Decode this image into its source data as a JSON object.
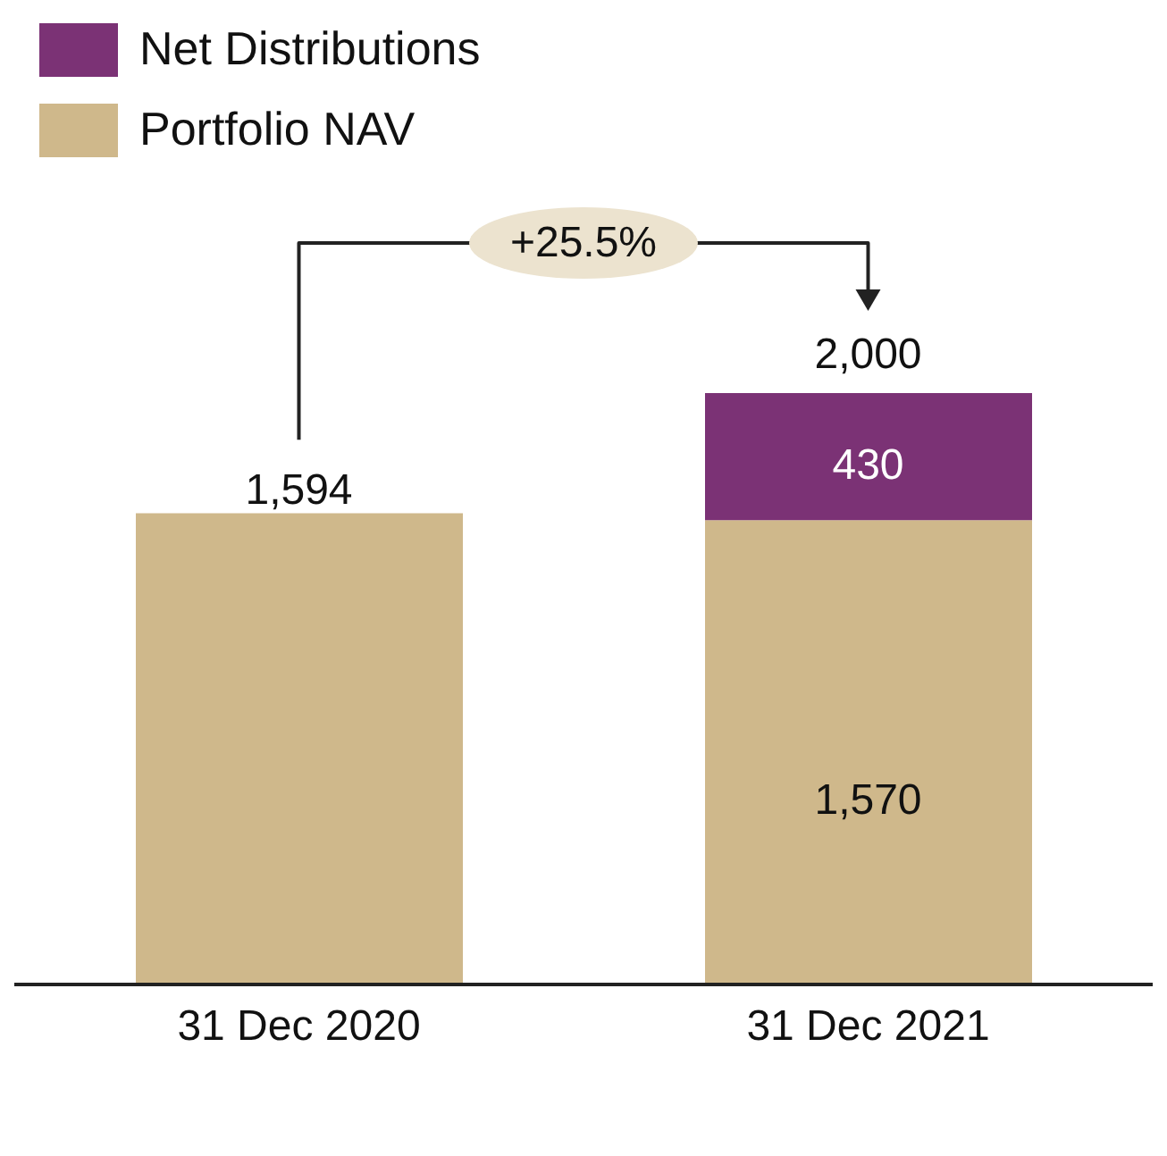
{
  "chart_data": {
    "type": "bar",
    "stacked": true,
    "categories": [
      "31 Dec 2020",
      "31 Dec 2021"
    ],
    "series": [
      {
        "name": "Portfolio NAV",
        "color": "#cfb88b",
        "values": [
          1594,
          1570
        ],
        "value_labels": [
          null,
          "1,570"
        ]
      },
      {
        "name": "Net Distributions",
        "color": "#7b3275",
        "values": [
          null,
          430
        ],
        "value_labels": [
          null,
          "430"
        ]
      }
    ],
    "totals": [
      "1,594",
      "2,000"
    ],
    "annotations": [
      "+25.5%"
    ],
    "legend": "top left",
    "grid": false
  }
}
